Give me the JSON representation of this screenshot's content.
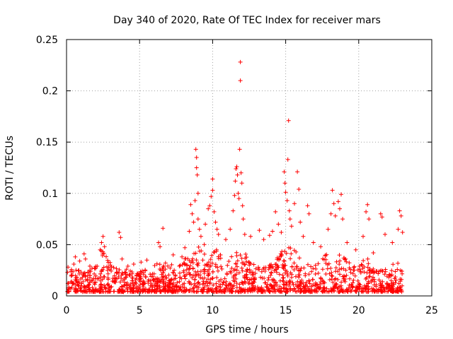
{
  "chart_data": {
    "type": "scatter",
    "title": "Day 340 of 2020, Rate Of TEC Index for receiver mars",
    "xlabel": "GPS time / hours",
    "ylabel": "ROTI / TECUs",
    "xlim": [
      0,
      25
    ],
    "ylim": [
      0,
      0.25
    ],
    "x_ticks": [
      0,
      5,
      10,
      15,
      20,
      25
    ],
    "x_tick_labels": [
      "0",
      "5",
      "10",
      "15",
      "20",
      "25"
    ],
    "y_ticks": [
      0,
      0.05,
      0.1,
      0.15,
      0.2,
      0.25
    ],
    "y_tick_labels": [
      "0",
      "0.05",
      "0.1",
      "0.15",
      "0.2",
      "0.25"
    ],
    "grid": true,
    "legend": "none",
    "marker": "plus",
    "color": "#ff0000",
    "series": [
      {
        "points": [
          [
            0.1,
            0.028
          ],
          [
            0.3,
            0.024
          ],
          [
            0.5,
            0.031
          ],
          [
            0.6,
            0.038
          ],
          [
            0.9,
            0.034
          ],
          [
            1.2,
            0.041
          ],
          [
            1.3,
            0.036
          ],
          [
            1.6,
            0.029
          ],
          [
            2.0,
            0.027
          ],
          [
            2.3,
            0.045
          ],
          [
            2.4,
            0.052
          ],
          [
            2.5,
            0.058
          ],
          [
            2.6,
            0.048
          ],
          [
            3.0,
            0.03
          ],
          [
            3.6,
            0.062
          ],
          [
            3.7,
            0.057
          ],
          [
            3.8,
            0.036
          ],
          [
            4.2,
            0.029
          ],
          [
            4.6,
            0.031
          ],
          [
            5.1,
            0.033
          ],
          [
            5.5,
            0.035
          ],
          [
            6.3,
            0.052
          ],
          [
            6.4,
            0.048
          ],
          [
            6.6,
            0.066
          ],
          [
            7.3,
            0.04
          ],
          [
            7.9,
            0.038
          ],
          [
            8.1,
            0.047
          ],
          [
            8.4,
            0.063
          ],
          [
            8.5,
            0.089
          ],
          [
            8.6,
            0.08
          ],
          [
            8.7,
            0.072
          ],
          [
            8.8,
            0.093
          ],
          [
            8.85,
            0.143
          ],
          [
            8.9,
            0.135
          ],
          [
            8.9,
            0.125
          ],
          [
            8.95,
            0.118
          ],
          [
            9.0,
            0.1
          ],
          [
            9.0,
            0.075
          ],
          [
            9.1,
            0.065
          ],
          [
            9.2,
            0.058
          ],
          [
            9.5,
            0.07
          ],
          [
            9.7,
            0.085
          ],
          [
            9.8,
            0.088
          ],
          [
            9.9,
            0.097
          ],
          [
            10.0,
            0.103
          ],
          [
            10.0,
            0.114
          ],
          [
            10.1,
            0.082
          ],
          [
            10.2,
            0.072
          ],
          [
            10.3,
            0.065
          ],
          [
            10.4,
            0.06
          ],
          [
            10.9,
            0.055
          ],
          [
            11.2,
            0.065
          ],
          [
            11.4,
            0.083
          ],
          [
            11.5,
            0.098
          ],
          [
            11.55,
            0.112
          ],
          [
            11.6,
            0.124
          ],
          [
            11.65,
            0.126
          ],
          [
            11.7,
            0.118
          ],
          [
            11.75,
            0.1
          ],
          [
            11.8,
            0.095
          ],
          [
            11.85,
            0.143
          ],
          [
            11.9,
            0.228
          ],
          [
            11.9,
            0.21
          ],
          [
            11.95,
            0.12
          ],
          [
            12.0,
            0.11
          ],
          [
            12.05,
            0.088
          ],
          [
            12.1,
            0.075
          ],
          [
            12.2,
            0.06
          ],
          [
            12.6,
            0.058
          ],
          [
            13.2,
            0.064
          ],
          [
            13.5,
            0.055
          ],
          [
            13.9,
            0.059
          ],
          [
            14.1,
            0.063
          ],
          [
            14.3,
            0.082
          ],
          [
            14.5,
            0.07
          ],
          [
            14.7,
            0.062
          ],
          [
            14.9,
            0.121
          ],
          [
            14.95,
            0.11
          ],
          [
            15.0,
            0.101
          ],
          [
            15.1,
            0.093
          ],
          [
            15.15,
            0.133
          ],
          [
            15.2,
            0.171
          ],
          [
            15.25,
            0.083
          ],
          [
            15.3,
            0.075
          ],
          [
            15.4,
            0.068
          ],
          [
            15.6,
            0.09
          ],
          [
            15.8,
            0.121
          ],
          [
            15.9,
            0.104
          ],
          [
            16.0,
            0.072
          ],
          [
            16.2,
            0.058
          ],
          [
            16.5,
            0.088
          ],
          [
            16.6,
            0.08
          ],
          [
            16.9,
            0.052
          ],
          [
            17.4,
            0.048
          ],
          [
            17.9,
            0.065
          ],
          [
            18.1,
            0.08
          ],
          [
            18.2,
            0.103
          ],
          [
            18.3,
            0.09
          ],
          [
            18.4,
            0.078
          ],
          [
            18.6,
            0.092
          ],
          [
            18.7,
            0.085
          ],
          [
            18.8,
            0.099
          ],
          [
            18.9,
            0.075
          ],
          [
            19.2,
            0.052
          ],
          [
            19.8,
            0.045
          ],
          [
            20.3,
            0.058
          ],
          [
            20.5,
            0.082
          ],
          [
            20.6,
            0.089
          ],
          [
            20.7,
            0.075
          ],
          [
            21.0,
            0.042
          ],
          [
            21.5,
            0.08
          ],
          [
            21.6,
            0.077
          ],
          [
            21.8,
            0.06
          ],
          [
            22.3,
            0.052
          ],
          [
            22.7,
            0.065
          ],
          [
            22.8,
            0.083
          ],
          [
            22.9,
            0.078
          ],
          [
            23.0,
            0.062
          ]
        ]
      }
    ]
  }
}
